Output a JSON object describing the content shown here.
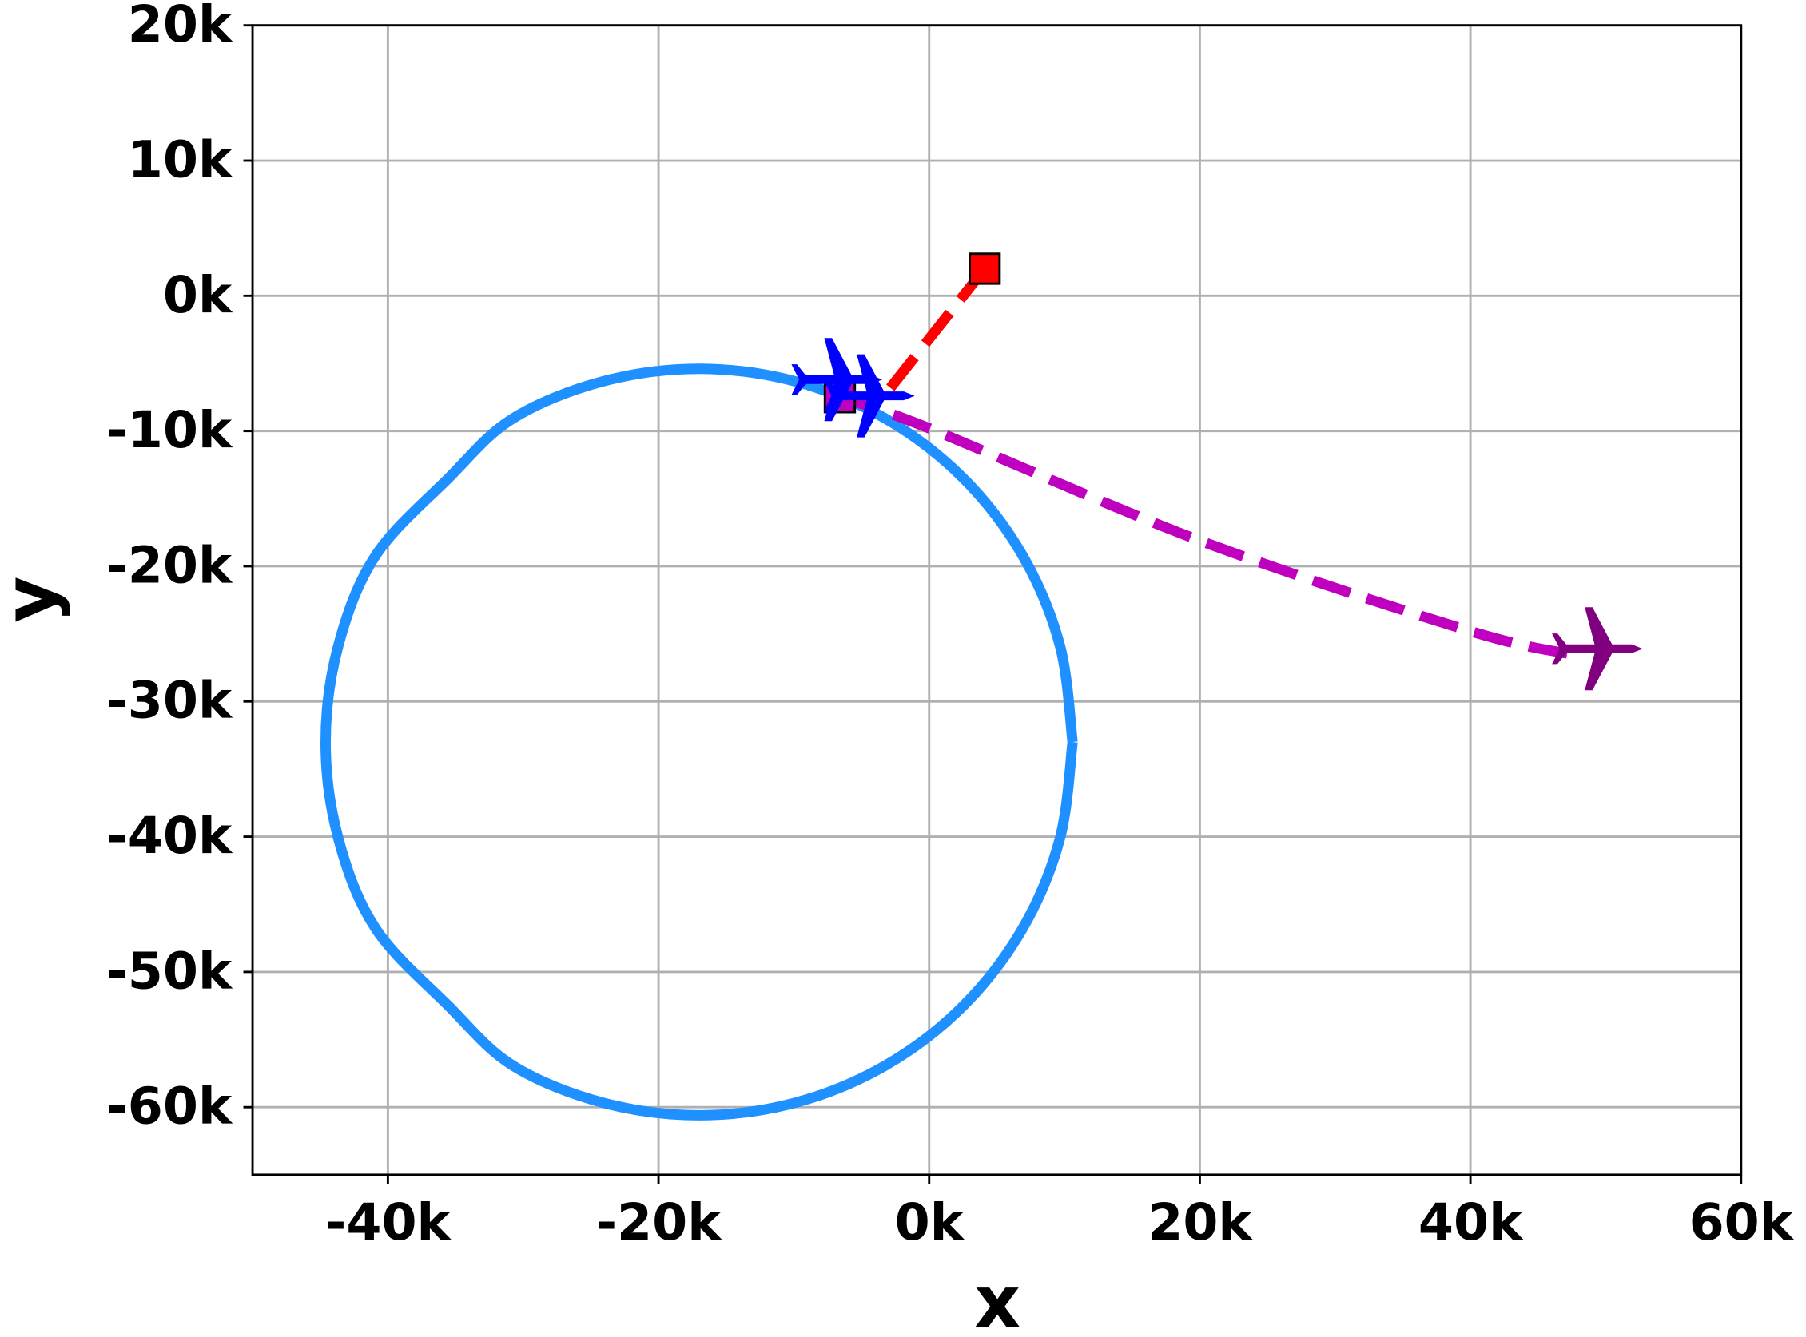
{
  "chart_data": {
    "type": "line",
    "x_label": "x",
    "y_label": "y",
    "xlim": [
      -50000,
      60000
    ],
    "xticks": [
      {
        "value": -40000,
        "label": "-40k"
      },
      {
        "value": -20000,
        "label": "-20k"
      },
      {
        "value": 0,
        "label": "0k"
      },
      {
        "value": 20000,
        "label": "20k"
      },
      {
        "value": 40000,
        "label": "40k"
      },
      {
        "value": 60000,
        "label": "60k"
      }
    ],
    "ylim": [
      -65000,
      20000
    ],
    "yticks": [
      {
        "value": -60000,
        "label": "-60k"
      },
      {
        "value": -50000,
        "label": "-50k"
      },
      {
        "value": -40000,
        "label": "-40k"
      },
      {
        "value": -30000,
        "label": "-30k"
      },
      {
        "value": -20000,
        "label": "-20k"
      },
      {
        "value": -10000,
        "label": "-10k"
      },
      {
        "value": 0,
        "label": "0k"
      },
      {
        "value": 10000,
        "label": "10k"
      },
      {
        "value": 20000,
        "label": "20k"
      }
    ],
    "grid": true,
    "series": [
      {
        "color": "#1e90ff",
        "dash": "solid",
        "smooth": true,
        "x": [
          10600,
          9660,
          6900,
          2516,
          -3200,
          -9857,
          -17000,
          -24143,
          -30800,
          -35516,
          -40900,
          -43660,
          -44600,
          -43660,
          -40900,
          -35516,
          -30800,
          -24143,
          -17000,
          -9857,
          -3200,
          2516,
          6900,
          9660,
          10600
        ],
        "values": [
          -33000,
          -25857,
          -19200,
          -13484,
          -9100,
          -6340,
          -5400,
          -6340,
          -9100,
          -13484,
          -19200,
          -25857,
          -33000,
          -40143,
          -46800,
          -52516,
          -56900,
          -59660,
          -60600,
          -59660,
          -56900,
          -52516,
          -46800,
          -40143,
          -33000
        ]
      },
      {
        "color": "#ff0000",
        "dash": "dashed",
        "smooth": false,
        "x": [
          4100,
          -3100
        ],
        "values": [
          2000,
          -7100
        ]
      },
      {
        "color": "#bf00bf",
        "dash": "dashed",
        "smooth": true,
        "x": [
          -6600,
          0,
          20000,
          40000,
          48000
        ],
        "values": [
          -7500,
          -9800,
          -18100,
          -24800,
          -26600
        ]
      }
    ],
    "points": [
      {
        "x": 4100,
        "y": 2000,
        "color": "#ff0000",
        "marker": "square"
      },
      {
        "x": -6600,
        "y": -7500,
        "color": "#bf00bf",
        "marker": "square"
      },
      {
        "x": -6700,
        "y": -6200,
        "color": "#0000ff",
        "marker": "plane"
      },
      {
        "x": -4300,
        "y": -7400,
        "color": "#0000ff",
        "marker": "plane"
      },
      {
        "x": 49500,
        "y": -26100,
        "color": "#800080",
        "marker": "plane"
      }
    ]
  }
}
